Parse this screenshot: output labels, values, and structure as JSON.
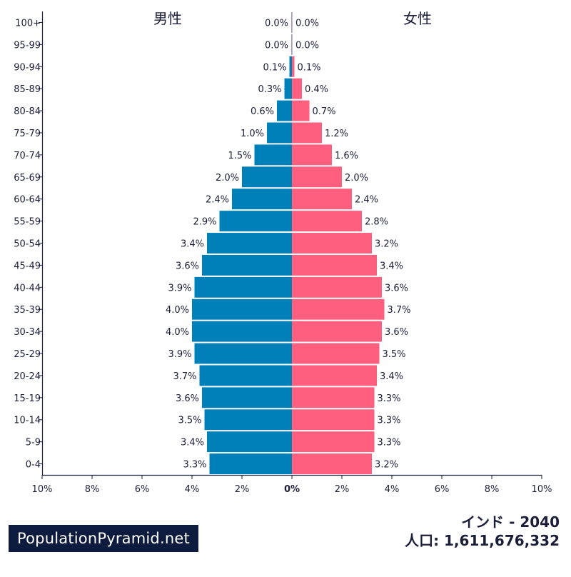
{
  "chart_data": {
    "type": "bar",
    "orientation": "horizontal-pyramid",
    "categories": [
      "0-4",
      "5-9",
      "10-14",
      "15-19",
      "20-24",
      "25-29",
      "30-34",
      "35-39",
      "40-44",
      "45-49",
      "50-54",
      "55-59",
      "60-64",
      "65-69",
      "70-74",
      "75-79",
      "80-84",
      "85-89",
      "90-94",
      "95-99",
      "100+"
    ],
    "series": [
      {
        "name": "男性",
        "color": "#0080b8",
        "values": [
          3.3,
          3.4,
          3.5,
          3.6,
          3.7,
          3.9,
          4.0,
          4.0,
          3.9,
          3.6,
          3.4,
          2.9,
          2.4,
          2.0,
          1.5,
          1.0,
          0.6,
          0.3,
          0.1,
          0.0,
          0.0
        ],
        "labels": [
          "3.3%",
          "3.4%",
          "3.5%",
          "3.6%",
          "3.7%",
          "3.9%",
          "4.0%",
          "4.0%",
          "3.9%",
          "3.6%",
          "3.4%",
          "2.9%",
          "2.4%",
          "2.0%",
          "1.5%",
          "1.0%",
          "0.6%",
          "0.3%",
          "0.1%",
          "0.0%",
          "0.0%"
        ]
      },
      {
        "name": "女性",
        "color": "#ff5f7e",
        "values": [
          3.2,
          3.3,
          3.3,
          3.3,
          3.4,
          3.5,
          3.6,
          3.7,
          3.6,
          3.4,
          3.2,
          2.8,
          2.4,
          2.0,
          1.6,
          1.2,
          0.7,
          0.4,
          0.1,
          0.0,
          0.0
        ],
        "labels": [
          "3.2%",
          "3.3%",
          "3.3%",
          "3.3%",
          "3.4%",
          "3.5%",
          "3.6%",
          "3.7%",
          "3.6%",
          "3.4%",
          "3.2%",
          "2.8%",
          "2.4%",
          "2.0%",
          "1.6%",
          "1.2%",
          "0.7%",
          "0.4%",
          "0.1%",
          "0.0%",
          "0.0%"
        ]
      }
    ],
    "xlim": [
      -10,
      10
    ],
    "x_ticks": [
      -10,
      -8,
      -6,
      -4,
      -2,
      0,
      2,
      4,
      6,
      8,
      10
    ],
    "x_tick_labels": [
      "10%",
      "8%",
      "6%",
      "4%",
      "2%",
      "0%",
      "2%",
      "4%",
      "6%",
      "8%",
      "10%"
    ],
    "grid": false,
    "xlabel": "",
    "ylabel": ""
  },
  "footer": {
    "title": "インド - 2040",
    "population": "人口: 1,611,676,332",
    "brand": "PopulationPyramid.net"
  }
}
